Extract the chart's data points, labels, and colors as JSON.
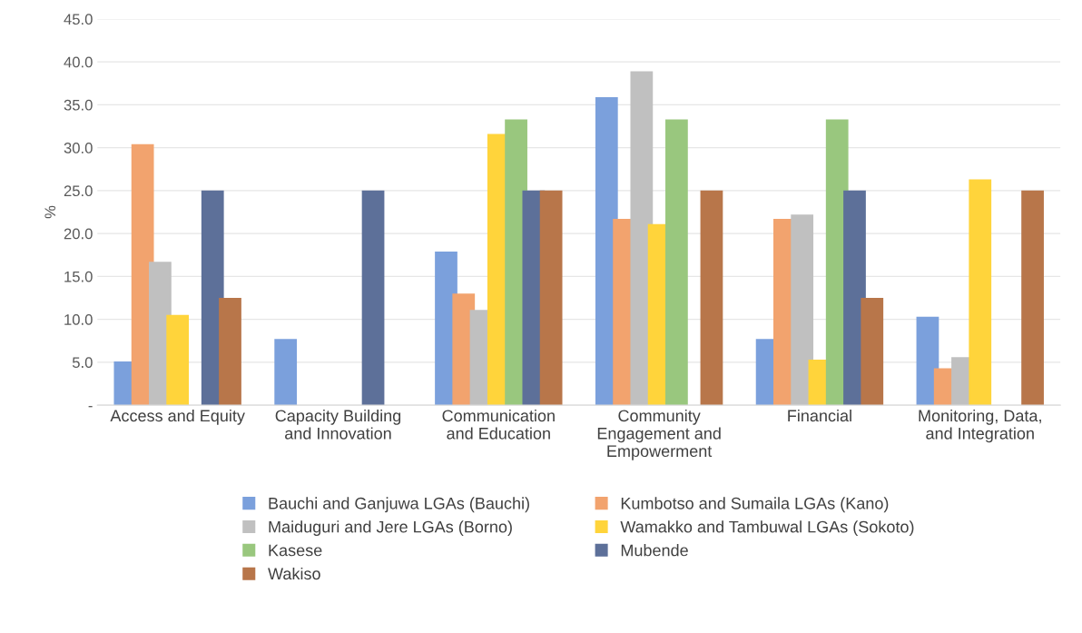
{
  "chart_data": {
    "type": "bar",
    "ylabel": "%",
    "categories": [
      "Access and Equity",
      "Capacity Building\nand Innovation",
      "Communication\nand Education",
      "Community\nEngagement and\nEmpowerment",
      "Financial",
      "Monitoring, Data,\nand Integration"
    ],
    "series": [
      {
        "name": "Bauchi and Ganjuwa LGAs (Bauchi)",
        "color": "#7ba0dc",
        "values": [
          5.1,
          7.7,
          17.9,
          35.9,
          7.7,
          10.3
        ]
      },
      {
        "name": "Kumbotso and Sumaila LGAs (Kano)",
        "color": "#f2a36e",
        "values": [
          30.4,
          0,
          13.0,
          21.7,
          21.7,
          4.3
        ]
      },
      {
        "name": "Maiduguri and Jere LGAs (Borno)",
        "color": "#c0c0c0",
        "values": [
          16.7,
          0,
          11.1,
          38.9,
          22.2,
          5.6
        ]
      },
      {
        "name": "Wamakko and Tambuwal LGAs (Sokoto)",
        "color": "#ffd43b",
        "values": [
          10.5,
          0,
          31.6,
          21.1,
          5.3,
          26.3
        ]
      },
      {
        "name": "Kasese",
        "color": "#99c77e",
        "values": [
          0,
          0,
          33.3,
          33.3,
          33.3,
          0
        ]
      },
      {
        "name": "Mubende",
        "color": "#5d7099",
        "values": [
          25.0,
          25.0,
          25.0,
          0,
          25.0,
          0
        ]
      },
      {
        "name": "Wakiso",
        "color": "#b8764a",
        "values": [
          12.5,
          0,
          25.0,
          25.0,
          12.5,
          25.0
        ]
      }
    ],
    "ylim": [
      0,
      45
    ],
    "yticks": [
      {
        "value": 0,
        "label": "-"
      },
      {
        "value": 5,
        "label": "5.0"
      },
      {
        "value": 10,
        "label": "10.0"
      },
      {
        "value": 15,
        "label": "15.0"
      },
      {
        "value": 20,
        "label": "20.0"
      },
      {
        "value": 25,
        "label": "25.0"
      },
      {
        "value": 30,
        "label": "30.0"
      },
      {
        "value": 35,
        "label": "35.0"
      },
      {
        "value": 40,
        "label": "40.0"
      },
      {
        "value": 45,
        "label": "45.0"
      }
    ],
    "grid": "y",
    "legend": "bottom"
  }
}
